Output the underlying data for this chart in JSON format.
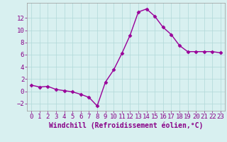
{
  "x": [
    0,
    1,
    2,
    3,
    4,
    5,
    6,
    7,
    8,
    9,
    10,
    11,
    12,
    13,
    14,
    15,
    16,
    17,
    18,
    19,
    20,
    21,
    22,
    23
  ],
  "y": [
    1,
    0.7,
    0.8,
    0.3,
    0.1,
    -0.1,
    -0.5,
    -1.0,
    -2.4,
    1.5,
    3.5,
    6.2,
    9.2,
    13.0,
    13.5,
    12.3,
    10.5,
    9.3,
    7.5,
    6.5,
    6.5,
    6.5,
    6.5,
    6.3
  ],
  "line_color": "#990099",
  "marker": "D",
  "marker_size": 2.5,
  "background_color": "#d8f0f0",
  "grid_color": "#b0d8d8",
  "xlabel": "Windchill (Refroidissement éolien,°C)",
  "xlabel_fontsize": 7,
  "yticks": [
    -2,
    0,
    2,
    4,
    6,
    8,
    10,
    12
  ],
  "xticks": [
    0,
    1,
    2,
    3,
    4,
    5,
    6,
    7,
    8,
    9,
    10,
    11,
    12,
    13,
    14,
    15,
    16,
    17,
    18,
    19,
    20,
    21,
    22,
    23
  ],
  "ylim": [
    -3.2,
    14.5
  ],
  "xlim": [
    -0.5,
    23.5
  ],
  "tick_fontsize": 6.5,
  "line_width": 1.0,
  "label_color": "#880088"
}
